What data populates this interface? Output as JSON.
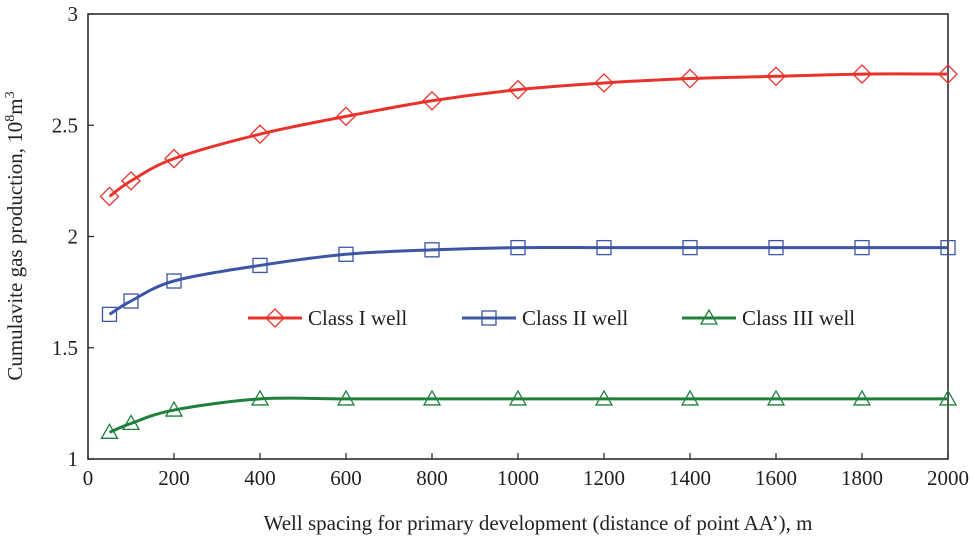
{
  "chart_data": {
    "type": "line",
    "title": "",
    "xlabel": "Well spacing for primary development (distance of point AA’), m",
    "ylabel": "Cumulavite gas production, 10",
    "ylabel_exponent": "8",
    "ylabel_suffix": "m",
    "ylabel_suffix_exponent": "3",
    "xlim": [
      0,
      2000
    ],
    "ylim": [
      1,
      3
    ],
    "xticks": [
      0,
      200,
      400,
      600,
      800,
      1000,
      1200,
      1400,
      1600,
      1800,
      2000
    ],
    "yticks": [
      1,
      1.5,
      2,
      2.5,
      3
    ],
    "ytick_labels": [
      "1",
      "1.5",
      "2",
      "2.5",
      "3"
    ],
    "grid": false,
    "legend_position": "center",
    "series": [
      {
        "name": "Class I well",
        "color": "#e8322b",
        "marker": "diamond",
        "x": [
          50,
          100,
          200,
          400,
          600,
          800,
          1000,
          1200,
          1400,
          1600,
          1800,
          2000
        ],
        "y": [
          2.18,
          2.25,
          2.35,
          2.46,
          2.54,
          2.61,
          2.66,
          2.69,
          2.71,
          2.72,
          2.73,
          2.73
        ]
      },
      {
        "name": "Class II well",
        "color": "#3c55a5",
        "marker": "square",
        "x": [
          50,
          100,
          200,
          400,
          600,
          800,
          1000,
          1200,
          1400,
          1600,
          1800,
          2000
        ],
        "y": [
          1.65,
          1.71,
          1.8,
          1.87,
          1.92,
          1.94,
          1.95,
          1.95,
          1.95,
          1.95,
          1.95,
          1.95
        ]
      },
      {
        "name": "Class III well",
        "color": "#1f7f3b",
        "marker": "triangle",
        "x": [
          50,
          100,
          200,
          400,
          600,
          800,
          1000,
          1200,
          1400,
          1600,
          1800,
          2000
        ],
        "y": [
          1.12,
          1.16,
          1.22,
          1.27,
          1.27,
          1.27,
          1.27,
          1.27,
          1.27,
          1.27,
          1.27,
          1.27
        ]
      }
    ]
  }
}
